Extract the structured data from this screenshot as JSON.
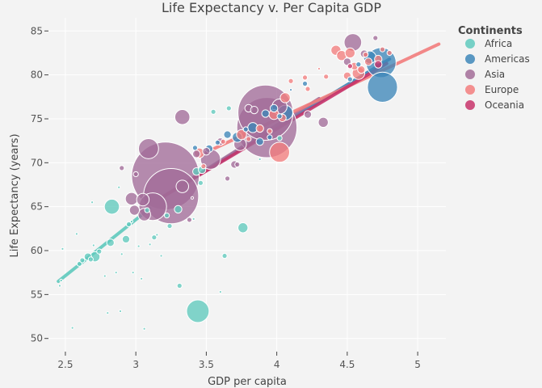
{
  "chart_data": {
    "type": "scatter",
    "title": "Life Expectancy v. Per Capita GDP",
    "xlabel": "GDP per capita",
    "ylabel": "Life Expectancy (years)",
    "xlim": [
      2.38,
      5.2
    ],
    "ylim": [
      48.5,
      86.5
    ],
    "xticks": [
      2.5,
      3,
      3.5,
      4,
      4.5,
      5
    ],
    "xtick_labels": [
      "2.5",
      "3",
      "3.5",
      "4",
      "4.5",
      "5"
    ],
    "yticks": [
      50,
      55,
      60,
      65,
      70,
      75,
      80,
      85
    ],
    "ytick_labels": [
      "50",
      "55",
      "60",
      "65",
      "70",
      "75",
      "80",
      "85"
    ],
    "grid": true,
    "legend": {
      "title": "Continents",
      "placement": "top-right"
    },
    "series": [
      {
        "name": "Africa",
        "color": "#5fc9bd",
        "fit": {
          "x": [
            2.45,
            3.1
          ],
          "y": [
            56.5,
            64.8
          ]
        },
        "points": [
          [
            2.46,
            56.0,
            1
          ],
          [
            2.47,
            56.6,
            1
          ],
          [
            2.48,
            60.2,
            1
          ],
          [
            2.55,
            51.2,
            1
          ],
          [
            2.58,
            61.9,
            1
          ],
          [
            2.6,
            58.5,
            2
          ],
          [
            2.62,
            58.9,
            2
          ],
          [
            2.66,
            59.3,
            3
          ],
          [
            2.68,
            59.0,
            2
          ],
          [
            2.69,
            65.5,
            1
          ],
          [
            2.7,
            60.6,
            1
          ],
          [
            2.71,
            59.3,
            4
          ],
          [
            2.74,
            59.9,
            2
          ],
          [
            2.78,
            57.1,
            1
          ],
          [
            2.8,
            52.9,
            1
          ],
          [
            2.82,
            60.9,
            3
          ],
          [
            2.83,
            65.0,
            6
          ],
          [
            2.86,
            57.5,
            1
          ],
          [
            2.88,
            67.2,
            1
          ],
          [
            2.89,
            53.1,
            1
          ],
          [
            2.9,
            59.6,
            1
          ],
          [
            2.93,
            61.3,
            3
          ],
          [
            2.95,
            63.0,
            2
          ],
          [
            2.97,
            63.3,
            1
          ],
          [
            2.98,
            57.5,
            1
          ],
          [
            3.02,
            60.5,
            1
          ],
          [
            3.04,
            56.8,
            1
          ],
          [
            3.06,
            51.1,
            1
          ],
          [
            3.08,
            64.6,
            2
          ],
          [
            3.1,
            60.7,
            1
          ],
          [
            3.13,
            61.5,
            2
          ],
          [
            3.15,
            61.8,
            1
          ],
          [
            3.18,
            59.4,
            1
          ],
          [
            3.22,
            64.0,
            2
          ],
          [
            3.24,
            62.8,
            2
          ],
          [
            3.3,
            64.7,
            3
          ],
          [
            3.31,
            56.0,
            2
          ],
          [
            3.41,
            63.6,
            1
          ],
          [
            3.43,
            69.0,
            3
          ],
          [
            3.44,
            53.1,
            9
          ],
          [
            3.46,
            67.7,
            2
          ],
          [
            3.47,
            69.2,
            3
          ],
          [
            3.55,
            75.8,
            2
          ],
          [
            3.6,
            55.3,
            1
          ],
          [
            3.63,
            59.4,
            2
          ],
          [
            3.66,
            76.2,
            2
          ],
          [
            3.76,
            62.6,
            4
          ],
          [
            3.88,
            70.4,
            1
          ],
          [
            4.02,
            72.8,
            2
          ]
        ]
      },
      {
        "name": "Americas",
        "color": "#3d86b8",
        "fit": {
          "x": [
            3.3,
            4.8
          ],
          "y": [
            67.2,
            81.8
          ]
        },
        "points": [
          [
            3.42,
            71.7,
            2
          ],
          [
            3.52,
            71.6,
            3
          ],
          [
            3.58,
            72.3,
            2
          ],
          [
            3.65,
            73.2,
            3
          ],
          [
            3.72,
            72.9,
            4
          ],
          [
            3.78,
            73.8,
            2
          ],
          [
            3.83,
            74.0,
            4
          ],
          [
            3.88,
            72.4,
            3
          ],
          [
            3.92,
            75.6,
            3
          ],
          [
            3.95,
            72.9,
            2
          ],
          [
            3.98,
            76.2,
            3
          ],
          [
            4.02,
            75.3,
            2
          ],
          [
            4.06,
            75.7,
            6
          ],
          [
            4.1,
            78.3,
            1
          ],
          [
            4.2,
            79.0,
            2
          ],
          [
            4.52,
            79.5,
            2
          ],
          [
            4.58,
            81.2,
            2
          ],
          [
            4.66,
            82.0,
            5
          ],
          [
            4.74,
            81.4,
            12
          ],
          [
            4.75,
            78.6,
            12
          ]
        ]
      },
      {
        "name": "Asia",
        "color": "#a26c98",
        "fit": {
          "x": [
            3.2,
            4.3
          ],
          "y": [
            66.2,
            77.3
          ]
        },
        "points": [
          [
            2.9,
            69.4,
            2
          ],
          [
            2.97,
            65.9,
            5
          ],
          [
            2.99,
            64.6,
            4
          ],
          [
            3.0,
            68.7,
            2
          ],
          [
            3.05,
            65.8,
            5
          ],
          [
            3.06,
            64.1,
            5
          ],
          [
            3.09,
            71.6,
            8
          ],
          [
            3.12,
            65.0,
            11
          ],
          [
            3.21,
            68.5,
            27
          ],
          [
            3.25,
            66.2,
            22
          ],
          [
            3.33,
            75.2,
            6
          ],
          [
            3.33,
            67.3,
            5
          ],
          [
            3.38,
            63.5,
            2
          ],
          [
            3.4,
            66.0,
            1
          ],
          [
            3.43,
            71.0,
            3
          ],
          [
            3.5,
            71.3,
            3
          ],
          [
            3.53,
            70.4,
            8
          ],
          [
            3.6,
            72.4,
            3
          ],
          [
            3.65,
            68.2,
            2
          ],
          [
            3.7,
            69.8,
            3
          ],
          [
            3.72,
            69.8,
            2
          ],
          [
            3.74,
            72.1,
            5
          ],
          [
            3.8,
            76.2,
            3
          ],
          [
            3.84,
            76.0,
            3
          ],
          [
            3.92,
            75.7,
            22
          ],
          [
            3.93,
            74.0,
            24
          ],
          [
            4.02,
            76.4,
            6
          ],
          [
            4.22,
            75.5,
            3
          ],
          [
            4.33,
            74.6,
            4
          ],
          [
            4.5,
            81.5,
            3
          ],
          [
            4.54,
            83.7,
            7
          ],
          [
            4.62,
            82.4,
            3
          ],
          [
            4.7,
            84.2,
            2
          ]
        ]
      },
      {
        "name": "Europe",
        "color": "#f27d7d",
        "fit": {
          "x": [
            3.5,
            5.15
          ],
          "y": [
            71.2,
            83.5
          ]
        },
        "points": [
          [
            3.45,
            71.1,
            4
          ],
          [
            3.48,
            69.6,
            2
          ],
          [
            3.62,
            72.4,
            2
          ],
          [
            3.75,
            73.2,
            4
          ],
          [
            3.8,
            72.7,
            2
          ],
          [
            3.88,
            73.9,
            3
          ],
          [
            3.95,
            73.6,
            2
          ],
          [
            3.98,
            75.5,
            4
          ],
          [
            4.02,
            71.2,
            8
          ],
          [
            4.04,
            75.1,
            3
          ],
          [
            4.06,
            77.4,
            4
          ],
          [
            4.1,
            79.3,
            2
          ],
          [
            4.2,
            79.7,
            2
          ],
          [
            4.22,
            78.4,
            2
          ],
          [
            4.3,
            80.7,
            1
          ],
          [
            4.35,
            79.8,
            2
          ],
          [
            4.42,
            82.8,
            4
          ],
          [
            4.46,
            82.2,
            4
          ],
          [
            4.5,
            79.9,
            3
          ],
          [
            4.52,
            82.5,
            4
          ],
          [
            4.55,
            81.0,
            3
          ],
          [
            4.58,
            80.2,
            5
          ],
          [
            4.6,
            80.6,
            3
          ],
          [
            4.63,
            82.3,
            2
          ],
          [
            4.65,
            81.5,
            3
          ],
          [
            4.72,
            81.8,
            3
          ],
          [
            4.75,
            82.9,
            2
          ],
          [
            4.8,
            82.5,
            2
          ]
        ]
      },
      {
        "name": "Oceania",
        "color": "#c7336a",
        "fit": {
          "x": [
            3.2,
            4.78
          ],
          "y": [
            66.2,
            81.3
          ]
        },
        "points": [
          [
            4.52,
            81.0,
            2
          ],
          [
            4.72,
            81.2,
            3
          ]
        ]
      }
    ]
  }
}
